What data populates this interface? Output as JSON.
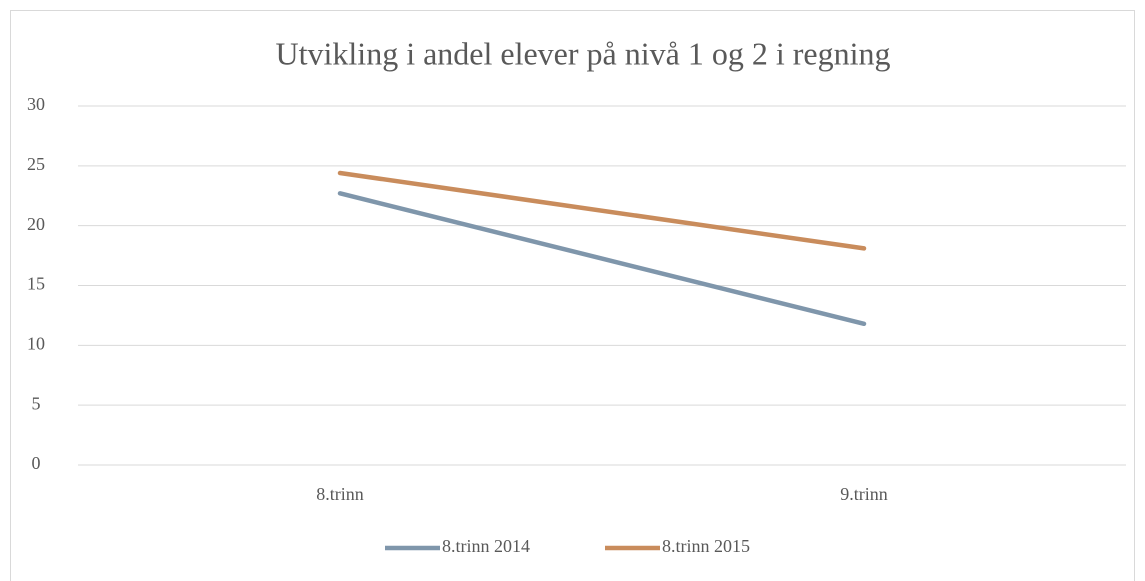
{
  "chart_data": {
    "type": "line",
    "title": "Utvikling i andel elever på nivå 1 og 2 i regning",
    "categories": [
      "8.trinn",
      "9.trinn"
    ],
    "series": [
      {
        "name": "8.trinn 2014",
        "color": "#7f96ab",
        "values": [
          22.7,
          11.8
        ]
      },
      {
        "name": "8.trinn 2015",
        "color": "#c98c5c",
        "values": [
          24.4,
          18.1
        ]
      }
    ],
    "ylim": [
      0,
      30
    ],
    "yticks": [
      0,
      5,
      10,
      15,
      20,
      25,
      30
    ],
    "grid": true,
    "legend": "bottom"
  }
}
